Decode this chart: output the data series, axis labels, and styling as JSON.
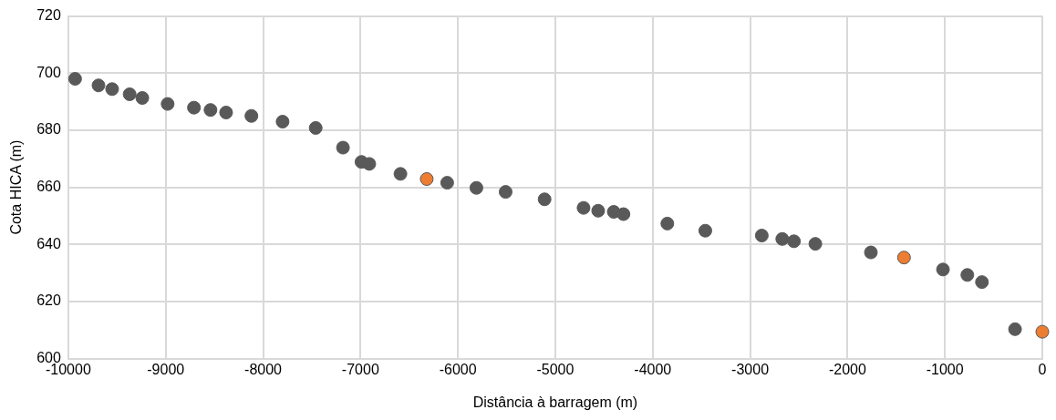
{
  "chart_data": {
    "type": "scatter",
    "xlabel": "Distância à barragem (m)",
    "ylabel": "Cota HICA (m)",
    "xlim": [
      -10000,
      0
    ],
    "xticks": [
      -10000,
      -9000,
      -8000,
      -7000,
      -6000,
      -5000,
      -4000,
      -3000,
      -2000,
      -1000,
      0
    ],
    "ylim": [
      600,
      720
    ],
    "yticks": [
      600,
      620,
      640,
      660,
      680,
      700,
      720
    ],
    "grid": true,
    "marker": "circle",
    "legend": false,
    "series": [
      {
        "color": "#595959",
        "x": [
          -9930,
          -9690,
          -9550,
          -9370,
          -9240,
          -8980,
          -8710,
          -8540,
          -8380,
          -8120,
          -7800,
          -7460,
          -7180,
          -6990,
          -6910,
          -6590,
          -6110,
          -5810,
          -5510,
          -5110,
          -4710,
          -4560,
          -4400,
          -4300,
          -3850,
          -3460,
          -2880,
          -2670,
          -2550,
          -2330,
          -1760,
          -1020,
          -770,
          -620,
          -280
        ],
        "values": [
          698.0,
          695.7,
          694.4,
          692.6,
          691.3,
          689.2,
          687.9,
          687.1,
          686.2,
          685.0,
          683.0,
          680.8,
          673.9,
          668.9,
          668.2,
          664.7,
          661.6,
          659.8,
          658.4,
          655.8,
          652.8,
          651.8,
          651.4,
          650.6,
          647.3,
          644.8,
          643.1,
          641.9,
          641.1,
          640.2,
          637.2,
          631.2,
          629.3,
          626.8,
          610.3
        ]
      },
      {
        "color": "#ed7d31",
        "x": [
          -6320,
          -1420,
          0
        ],
        "values": [
          662.9,
          635.4,
          609.4
        ]
      }
    ]
  }
}
